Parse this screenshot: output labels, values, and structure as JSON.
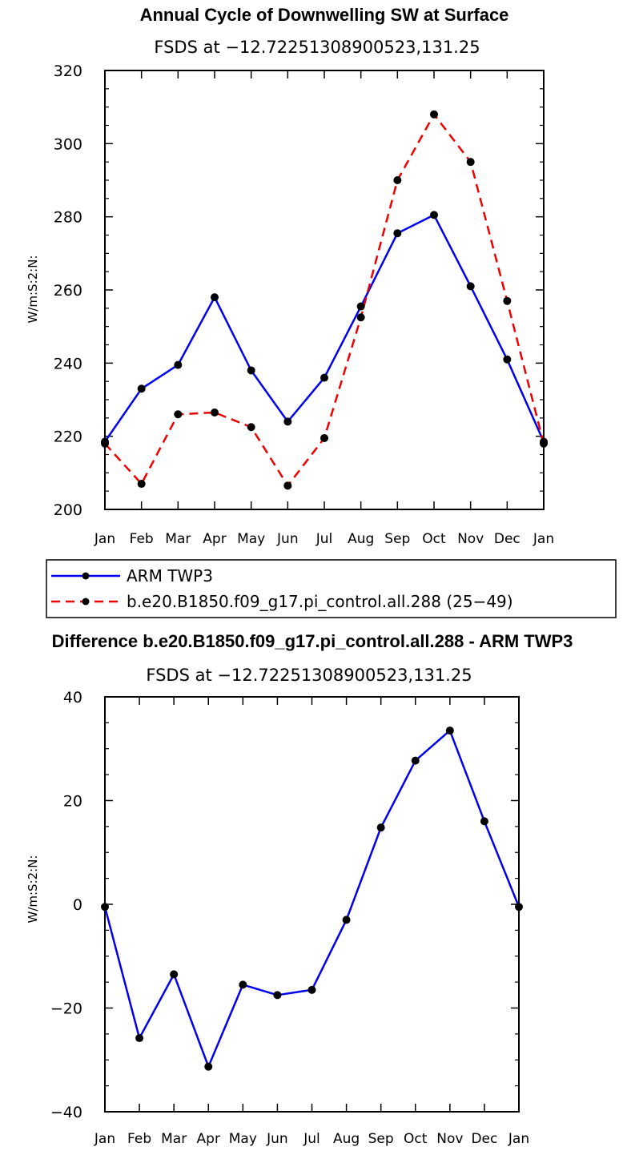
{
  "chart_data": [
    {
      "type": "line",
      "title": "Annual Cycle of Downwelling SW at Surface",
      "subtitle": "FSDS at −12.72251308900523,131.25",
      "ylabel": "W/m:S:2:N:",
      "xlabel": "",
      "categories": [
        "Jan",
        "Feb",
        "Mar",
        "Apr",
        "May",
        "Jun",
        "Jul",
        "Aug",
        "Sep",
        "Oct",
        "Nov",
        "Dec",
        "Jan"
      ],
      "ylim": [
        200,
        320
      ],
      "yticks": [
        "200",
        "220",
        "240",
        "260",
        "280",
        "300",
        "320"
      ],
      "series": [
        {
          "name": "ARM TWP3",
          "color": "#0000ee",
          "dash": "solid",
          "values": [
            218.5,
            233,
            239.5,
            258,
            238,
            224,
            236,
            255.5,
            275.5,
            280.5,
            261,
            241,
            218.5
          ]
        },
        {
          "name": "b.e20.B1850.f09_g17.pi_control.all.288 (25−49)",
          "color": "#ee0000",
          "dash": "dashed",
          "values": [
            218,
            207,
            226,
            226.5,
            222.5,
            206.5,
            219.5,
            252.5,
            290,
            308,
            295,
            257,
            218
          ]
        }
      ],
      "legend": "bottom"
    },
    {
      "type": "line",
      "title": "Difference b.e20.B1850.f09_g17.pi_control.all.288 - ARM TWP3",
      "subtitle": "FSDS at −12.72251308900523,131.25",
      "ylabel": "W/m:S:2:N:",
      "xlabel": "",
      "categories": [
        "Jan",
        "Feb",
        "Mar",
        "Apr",
        "May",
        "Jun",
        "Jul",
        "Aug",
        "Sep",
        "Oct",
        "Nov",
        "Dec",
        "Jan"
      ],
      "ylim": [
        -40,
        40
      ],
      "yticks": [
        "−40",
        "−20",
        "0",
        "20",
        "40"
      ],
      "series": [
        {
          "name": "Difference",
          "color": "#0000ee",
          "dash": "solid",
          "values": [
            -0.5,
            -25.8,
            -13.5,
            -31.3,
            -15.5,
            -17.5,
            -16.5,
            -3,
            14.8,
            27.7,
            33.5,
            16,
            -0.5
          ]
        }
      ]
    }
  ]
}
